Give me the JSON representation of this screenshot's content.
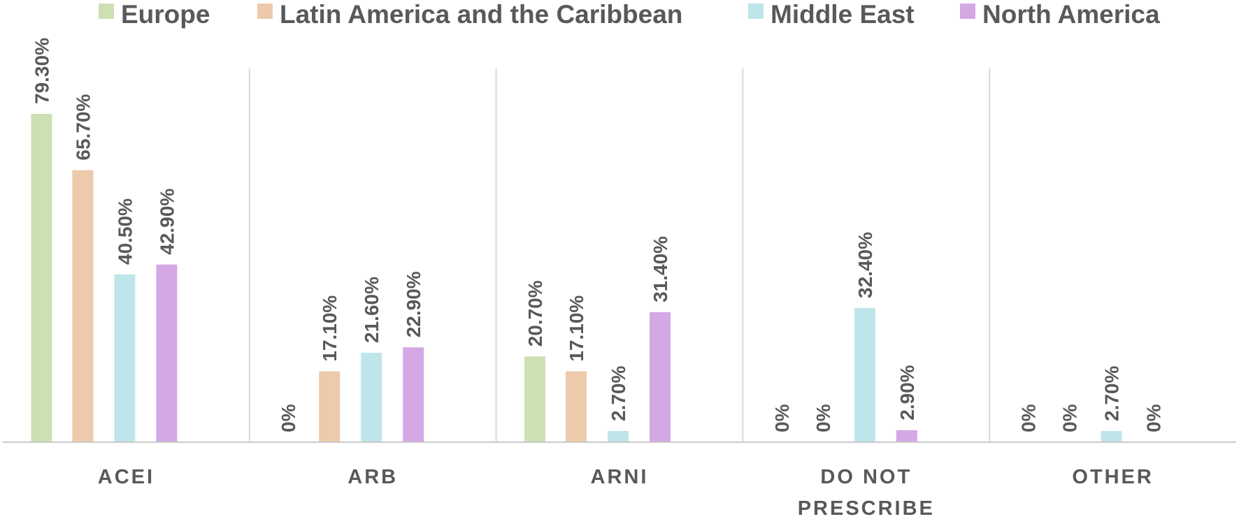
{
  "chart_data": {
    "type": "bar",
    "title": "",
    "xlabel": "",
    "ylabel": "",
    "ylim": [
      0,
      100
    ],
    "grid": false,
    "legend_position": "top",
    "categories": [
      "ACEI",
      "ARB",
      "ARNI",
      "DO NOT PRESCRIBE",
      "OTHER"
    ],
    "category_labels": [
      [
        "ACEI"
      ],
      [
        "ARB"
      ],
      [
        "ARNI"
      ],
      [
        "DO NOT",
        "PRESCRIBE"
      ],
      [
        "OTHER"
      ]
    ],
    "series": [
      {
        "name": "Europe",
        "color": "#cde0b3",
        "values": [
          79.3,
          0,
          20.7,
          0,
          0
        ],
        "labels": [
          "79.30%",
          "0%",
          "20.70%",
          "0%",
          "0%"
        ]
      },
      {
        "name": "Latin America and the Caribbean",
        "color": "#edcaab",
        "values": [
          65.7,
          17.1,
          17.1,
          0,
          0
        ],
        "labels": [
          "65.70%",
          "17.10%",
          "17.10%",
          "0%",
          "0%"
        ]
      },
      {
        "name": "Middle East",
        "color": "#bee5ea",
        "values": [
          40.5,
          21.6,
          2.7,
          32.4,
          2.7
        ],
        "labels": [
          "40.50%",
          "21.60%",
          "2.70%",
          "32.40%",
          "2.70%"
        ]
      },
      {
        "name": "North America",
        "color": "#d4a8e4",
        "values": [
          42.9,
          22.9,
          31.4,
          2.9,
          0
        ],
        "labels": [
          "42.90%",
          "22.90%",
          "31.40%",
          "2.90%",
          "0%"
        ]
      }
    ]
  }
}
